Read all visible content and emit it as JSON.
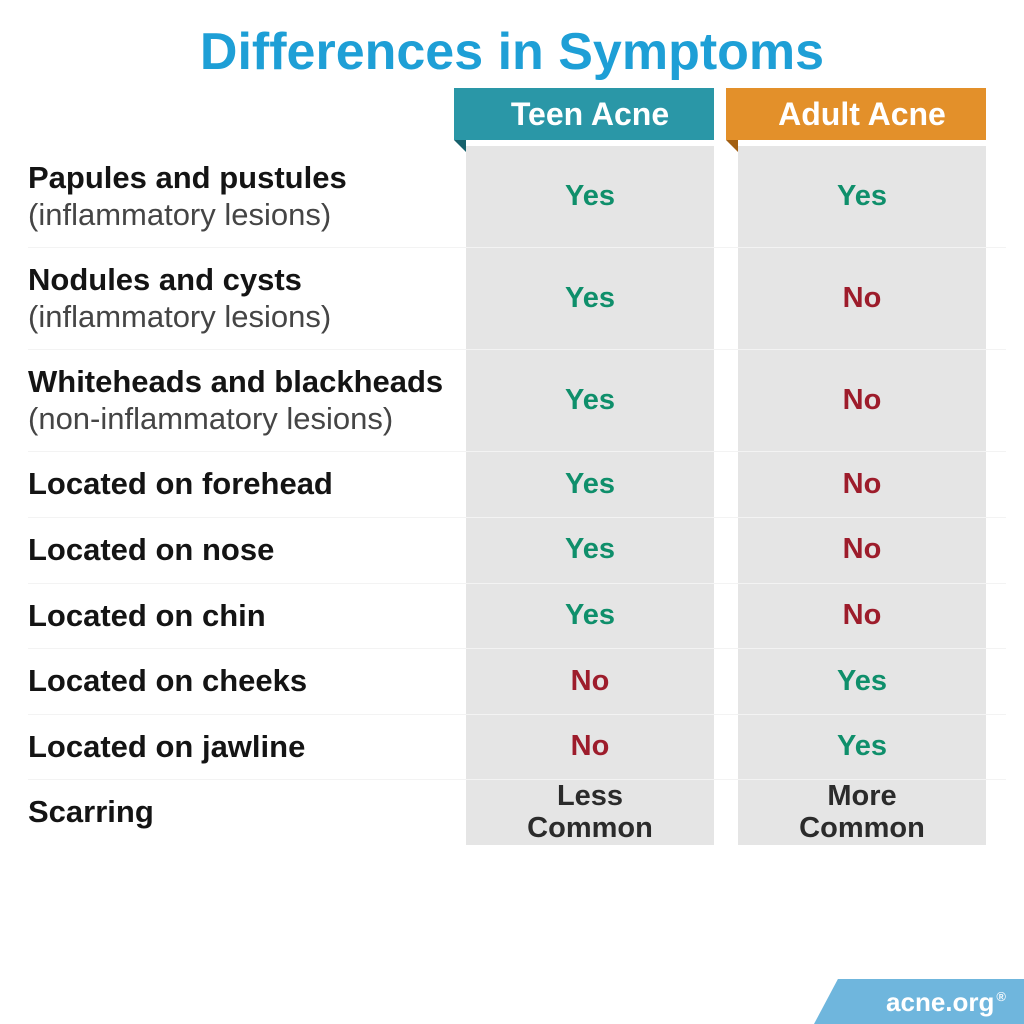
{
  "title": {
    "text": "Differences in Symptoms",
    "color": "#1e9fd6",
    "fontsize": 52
  },
  "layout": {
    "label_col_width": 438,
    "value_col_width": 248,
    "gap_width": 24,
    "row_border_color": "#f3f3f3",
    "cell_bg": "#e5e5e5",
    "background": "#ffffff"
  },
  "columns": [
    {
      "key": "teen",
      "label": "Teen Acne",
      "header_bg": "#2a97a7",
      "fold_color": "#16616c"
    },
    {
      "key": "adult",
      "label": "Adult Acne",
      "header_bg": "#e3902a",
      "fold_color": "#a25f12"
    }
  ],
  "value_styles": {
    "yes": {
      "text": "Yes",
      "color": "#0f8f6b"
    },
    "no": {
      "text": "No",
      "color": "#9d1c2b"
    },
    "plain": {
      "color": "#2b2b2b"
    }
  },
  "rows": [
    {
      "label_bold": "Papules and pustules",
      "label_sub": " (inflammatory lesions)",
      "teen": {
        "kind": "yes"
      },
      "adult": {
        "kind": "yes"
      }
    },
    {
      "label_bold": "Nodules and cysts",
      "label_sub": " (inflammatory lesions)",
      "teen": {
        "kind": "yes"
      },
      "adult": {
        "kind": "no"
      }
    },
    {
      "label_bold": "Whiteheads and blackheads",
      "label_sub": " (non-inflammatory lesions)",
      "teen": {
        "kind": "yes"
      },
      "adult": {
        "kind": "no"
      }
    },
    {
      "label_bold": "Located on forehead",
      "label_sub": "",
      "teen": {
        "kind": "yes"
      },
      "adult": {
        "kind": "no"
      }
    },
    {
      "label_bold": "Located on nose",
      "label_sub": "",
      "teen": {
        "kind": "yes"
      },
      "adult": {
        "kind": "no"
      }
    },
    {
      "label_bold": "Located on chin",
      "label_sub": "",
      "teen": {
        "kind": "yes"
      },
      "adult": {
        "kind": "no"
      }
    },
    {
      "label_bold": "Located on cheeks",
      "label_sub": "",
      "teen": {
        "kind": "no"
      },
      "adult": {
        "kind": "yes"
      }
    },
    {
      "label_bold": "Located on jawline",
      "label_sub": "",
      "teen": {
        "kind": "no"
      },
      "adult": {
        "kind": "yes"
      }
    },
    {
      "label_bold": "Scarring",
      "label_sub": "",
      "teen": {
        "kind": "plain",
        "text": "Less Common"
      },
      "adult": {
        "kind": "plain",
        "text": "More Common"
      }
    }
  ],
  "footer": {
    "text": "acne.org",
    "bg": "#6fb6dd",
    "reg": "®"
  }
}
